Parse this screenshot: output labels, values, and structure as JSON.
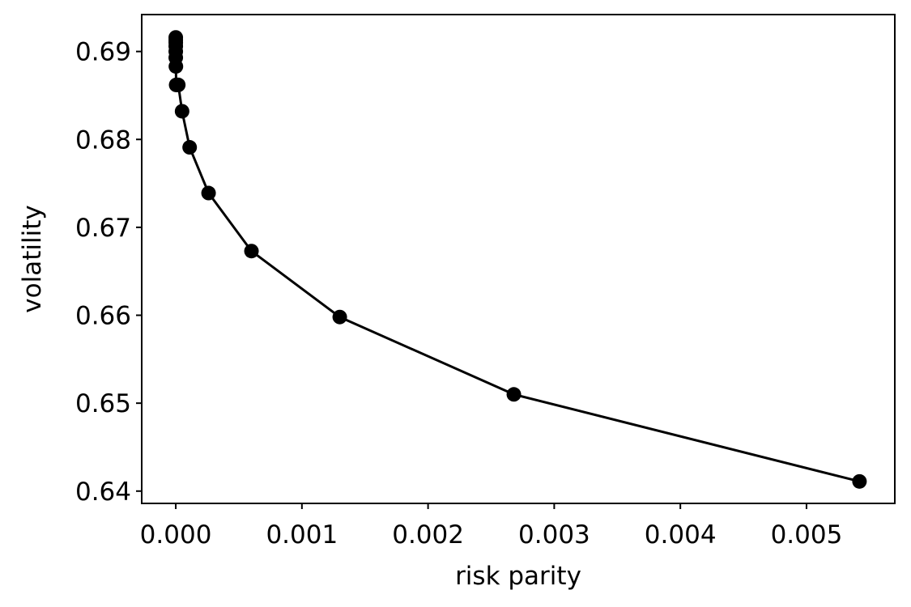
{
  "chart_data": {
    "type": "line",
    "title": "",
    "xlabel": "risk parity",
    "ylabel": "volatility",
    "xlim": [
      -0.00027,
      0.0057
    ],
    "ylim": [
      0.6386,
      0.6942
    ],
    "xticks": [
      0.0,
      0.001,
      0.002,
      0.003,
      0.004,
      0.005
    ],
    "xtick_labels": [
      "0.000",
      "0.001",
      "0.002",
      "0.003",
      "0.004",
      "0.005"
    ],
    "yticks": [
      0.64,
      0.65,
      0.66,
      0.67,
      0.68,
      0.69
    ],
    "ytick_labels": [
      "0.64",
      "0.65",
      "0.66",
      "0.67",
      "0.68",
      "0.69"
    ],
    "grid": false,
    "legend": "none",
    "series": [
      {
        "color": "#000000",
        "marker": "circle",
        "x": [
          0.0,
          0.0,
          0.0,
          0.0,
          0.0,
          0.0,
          1e-06,
          3e-06,
          1e-05,
          2e-05,
          5e-05,
          0.00011,
          0.00026,
          0.0006,
          0.0013,
          0.00268,
          0.00542
        ],
        "y": [
          0.6916,
          0.6913,
          0.691,
          0.6906,
          0.69,
          0.6893,
          0.6883,
          0.6862,
          0.6862,
          0.6862,
          0.6832,
          0.6791,
          0.6739,
          0.6673,
          0.6598,
          0.651,
          0.6411
        ]
      }
    ]
  }
}
